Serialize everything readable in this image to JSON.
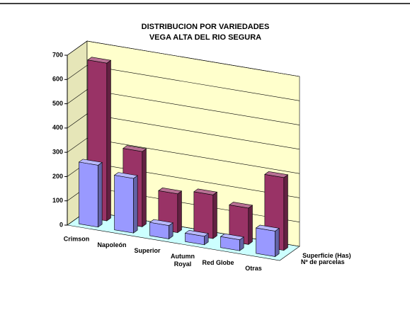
{
  "chart_data": {
    "type": "bar3d",
    "title": "DISTRIBUCION POR VARIEDADES",
    "subtitle": "VEGA ALTA DEL RIO SEGURA",
    "categories": [
      "Crimson",
      "Napoleón",
      "Superior",
      "Autumn\nRoyal",
      "Red Globe",
      "Otras"
    ],
    "series": [
      {
        "name": "Superficie (Has)",
        "color": "#993366",
        "values": [
          650,
          310,
          160,
          180,
          150,
          300
        ]
      },
      {
        "name": "Nº de parcelas",
        "color": "#9999ff",
        "values": [
          255,
          225,
          55,
          35,
          45,
          105
        ]
      }
    ],
    "ylim": [
      0,
      700
    ],
    "yticks": [
      0,
      100,
      200,
      300,
      400,
      500,
      600,
      700
    ],
    "grid": true
  }
}
